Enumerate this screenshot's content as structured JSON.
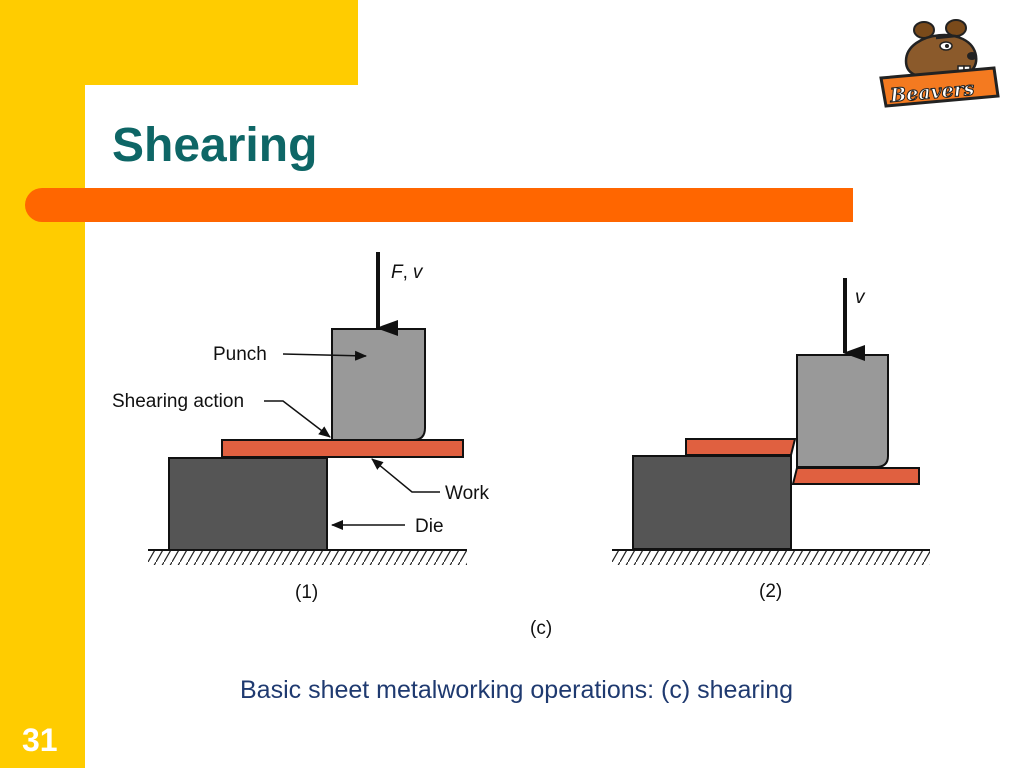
{
  "slide": {
    "title": "Shearing",
    "number": "31",
    "caption": "Basic sheet metalworking operations: (c) shearing"
  },
  "logo": {
    "icon": "beaver-mascot-icon",
    "text": "Beavers"
  },
  "diagram": {
    "labels": {
      "force_velocity_f": "F",
      "force_velocity_sep": ",",
      "force_velocity_v": "v",
      "velocity_2": "v",
      "punch": "Punch",
      "shearing_action": "Shearing action",
      "work": "Work",
      "die": "Die",
      "step_1": "(1)",
      "step_2": "(2)",
      "part": "(c)"
    },
    "colors": {
      "punch": "#999999",
      "die": "#555555",
      "work": "#e06040",
      "outline": "#111111"
    }
  }
}
